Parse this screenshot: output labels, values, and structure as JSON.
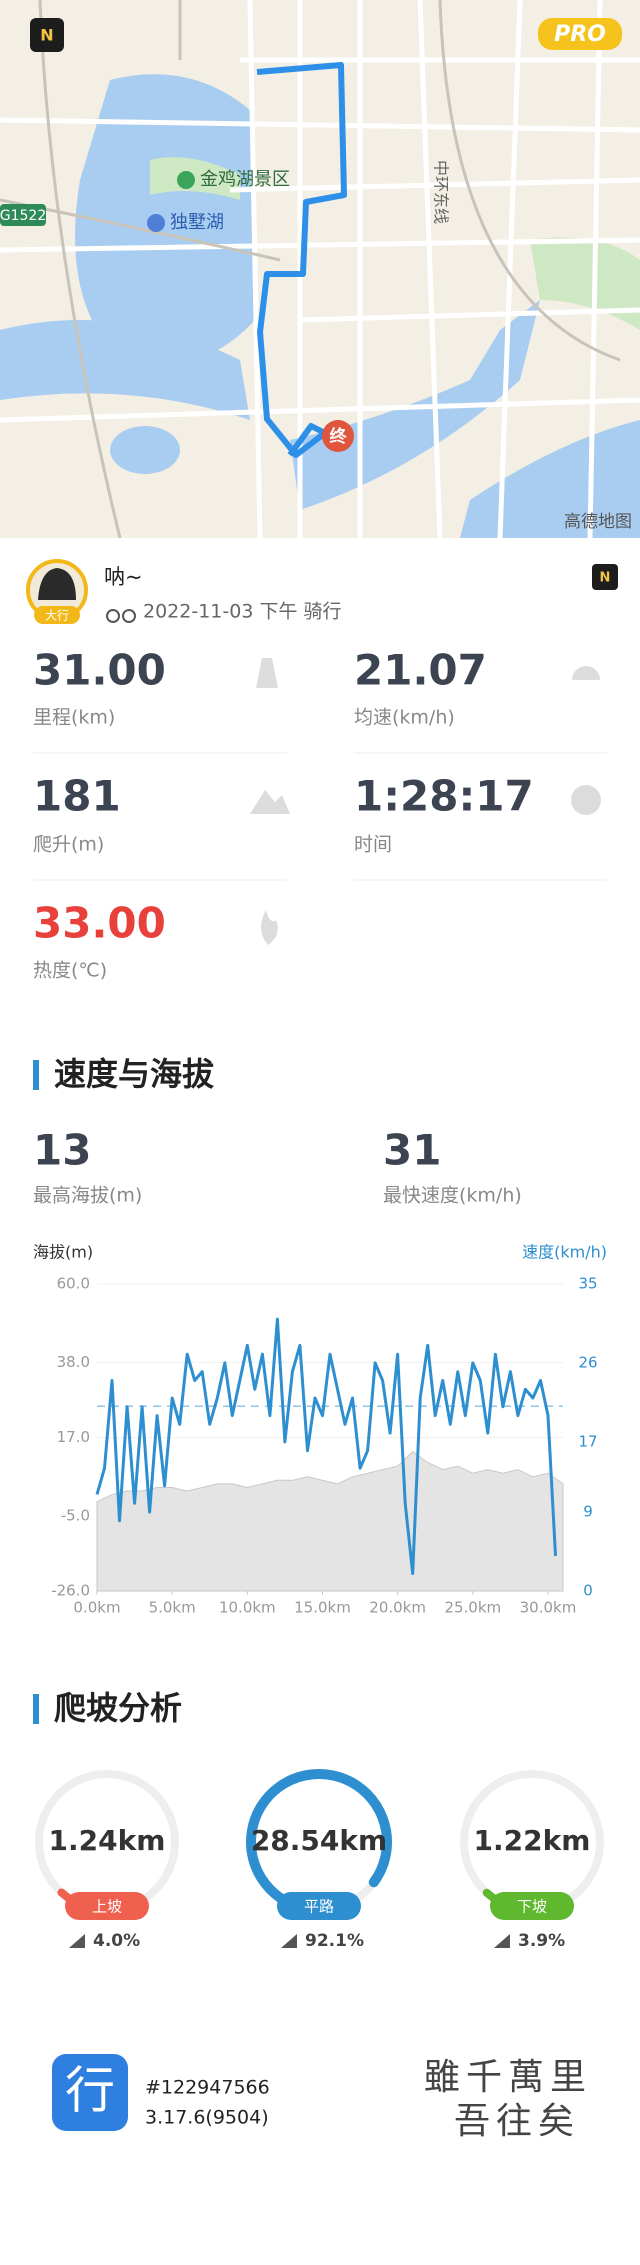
{
  "map": {
    "badge": "PRO",
    "end_marker": "终",
    "labels": [
      "金鸡湖景区",
      "独墅湖",
      "中环东线",
      "G1522"
    ],
    "provider": "高德地图"
  },
  "profile": {
    "name": "呐~",
    "subtitle": "2022-11-03 下午 骑行",
    "avatar_tag": "大行"
  },
  "stats": [
    {
      "value": "31.00",
      "label": "里程(km)"
    },
    {
      "value": "21.07",
      "label": "均速(km/h)"
    },
    {
      "value": "181",
      "label": "爬升(m)"
    },
    {
      "value": "1:28:17",
      "label": "时间"
    },
    {
      "value": "33.00",
      "label": "热度(℃)"
    }
  ],
  "section_speed": "速度与海拔",
  "summary": [
    {
      "value": "13",
      "label": "最高海拔(m)"
    },
    {
      "value": "31",
      "label": "最快速度(km/h)"
    }
  ],
  "chart_data": {
    "type": "line",
    "y_label": "海拔(m)",
    "y2_label": "速度(km/h)",
    "xlim": [
      0,
      31
    ],
    "xticks": [
      {
        "value": 0,
        "label": "0.0km"
      },
      {
        "value": 5,
        "label": "5.0km"
      },
      {
        "value": 10,
        "label": "10.0km"
      },
      {
        "value": 15,
        "label": "15.0km"
      },
      {
        "value": 20,
        "label": "20.0km"
      },
      {
        "value": 25,
        "label": "25.0km"
      },
      {
        "value": 30,
        "label": "30.0km"
      }
    ],
    "ylim": [
      -26,
      60
    ],
    "yticks": [
      {
        "value": -26,
        "label": "-26.0"
      },
      {
        "value": -5,
        "label": "-5.0"
      },
      {
        "value": 17,
        "label": "17.0"
      },
      {
        "value": 38,
        "label": "38.0"
      },
      {
        "value": 60,
        "label": "60.0"
      }
    ],
    "y2lim": [
      0,
      35
    ],
    "y2ticks": [
      0,
      9,
      17,
      26,
      35
    ],
    "average_speed": 21.07,
    "series": [
      {
        "name": "海拔",
        "color": "#d9d9d9",
        "x": [
          0,
          1,
          2,
          3,
          4,
          5,
          6,
          7,
          8,
          9,
          10,
          11,
          12,
          13,
          14,
          15,
          16,
          17,
          18,
          19,
          20,
          21,
          22,
          23,
          24,
          25,
          26,
          27,
          28,
          29,
          30,
          31
        ],
        "values": [
          -1,
          1,
          2,
          2,
          3,
          3,
          2,
          3,
          4,
          4,
          3,
          4,
          5,
          5,
          6,
          5,
          4,
          6,
          7,
          8,
          9,
          13,
          10,
          8,
          9,
          7,
          8,
          7,
          8,
          6,
          7,
          4
        ]
      },
      {
        "name": "速度",
        "color": "#2e8fd0",
        "axis": "y2",
        "x": [
          0,
          0.5,
          1,
          1.5,
          2,
          2.5,
          3,
          3.5,
          4,
          4.5,
          5,
          5.5,
          6,
          6.5,
          7,
          7.5,
          8,
          8.5,
          9,
          9.5,
          10,
          10.5,
          11,
          11.5,
          12,
          12.5,
          13,
          13.5,
          14,
          14.5,
          15,
          15.5,
          16,
          16.5,
          17,
          17.5,
          18,
          18.5,
          19,
          19.5,
          20,
          20.5,
          21,
          21.5,
          22,
          22.5,
          23,
          23.5,
          24,
          24.5,
          25,
          25.5,
          26,
          26.5,
          27,
          27.5,
          28,
          28.5,
          29,
          29.5,
          30,
          30.5
        ],
        "values": [
          11,
          14,
          24,
          8,
          21,
          10,
          21,
          9,
          20,
          12,
          22,
          19,
          27,
          24,
          25,
          19,
          22,
          26,
          20,
          24,
          28,
          23,
          27,
          20,
          31,
          17,
          25,
          28,
          16,
          22,
          20,
          27,
          23,
          19,
          22,
          14,
          16,
          26,
          24,
          18,
          27,
          10,
          2,
          22,
          28,
          20,
          24,
          19,
          25,
          20,
          26,
          24,
          18,
          27,
          21,
          25,
          20,
          23,
          22,
          24,
          20,
          4
        ]
      }
    ]
  },
  "section_climb": "爬坡分析",
  "climb": {
    "categories": [
      "上坡",
      "平路",
      "下坡"
    ],
    "distances": [
      "1.24km",
      "28.54km",
      "1.22km"
    ],
    "values": [
      4.0,
      92.1,
      3.9
    ],
    "value_labels": [
      "4.0%",
      "92.1%",
      "3.9%"
    ],
    "colors": [
      "#f0604f",
      "#2e8fd0",
      "#5fb82e"
    ]
  },
  "footer": {
    "app_icon": "行",
    "id": "#122947566",
    "version": "3.17.6(9504)",
    "signature": [
      "雖千萬里",
      "吾往矣"
    ]
  }
}
